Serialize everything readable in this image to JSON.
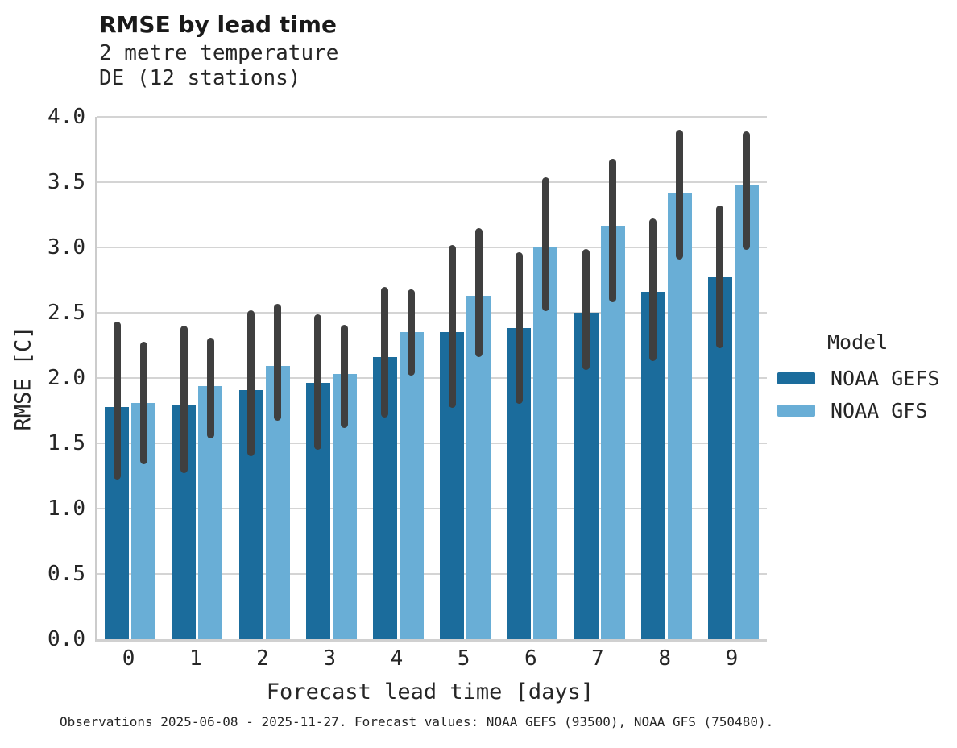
{
  "header": {
    "title": "RMSE by lead time",
    "subtitle_line1": "2 metre temperature",
    "subtitle_line2": "DE (12 stations)"
  },
  "chart_data": {
    "type": "bar",
    "title": "RMSE by lead time",
    "subtitle": [
      "2 metre temperature",
      "DE (12 stations)"
    ],
    "categories": [
      "0",
      "1",
      "2",
      "3",
      "4",
      "5",
      "6",
      "7",
      "8",
      "9"
    ],
    "xlabel": "Forecast lead time [days]",
    "ylabel": "RMSE [C]",
    "ylim": [
      0.0,
      4.0
    ],
    "ytick_step": 0.5,
    "yticks": [
      "0.0",
      "0.5",
      "1.0",
      "1.5",
      "2.0",
      "2.5",
      "3.0",
      "3.5",
      "4.0"
    ],
    "grid": "horizontal",
    "legend_title": "Model",
    "legend_position": "right",
    "error_bar_color": "#3f3f3f",
    "series": [
      {
        "name": "NOAA GEFS",
        "color": "#1b6c9c",
        "values": [
          1.78,
          1.79,
          1.91,
          1.96,
          2.16,
          2.35,
          2.38,
          2.5,
          2.66,
          2.77
        ],
        "error_low": [
          1.22,
          1.27,
          1.4,
          1.45,
          1.7,
          1.77,
          1.8,
          2.06,
          2.13,
          2.23
        ],
        "error_high": [
          2.43,
          2.4,
          2.52,
          2.49,
          2.7,
          3.02,
          2.96,
          2.99,
          3.22,
          3.32
        ]
      },
      {
        "name": "NOAA GFS",
        "color": "#69aed6",
        "values": [
          1.81,
          1.94,
          2.09,
          2.03,
          2.35,
          2.63,
          3.0,
          3.16,
          3.42,
          3.48
        ],
        "error_low": [
          1.34,
          1.54,
          1.67,
          1.62,
          2.02,
          2.16,
          2.51,
          2.58,
          2.91,
          2.98
        ],
        "error_high": [
          2.28,
          2.31,
          2.57,
          2.41,
          2.68,
          3.15,
          3.54,
          3.68,
          3.9,
          3.89
        ]
      }
    ]
  },
  "footer": {
    "text": "Observations 2025-06-08 - 2025-11-27. Forecast values: NOAA GEFS (93500), NOAA GFS (750480)."
  },
  "colors": {
    "gefs_bar": "#1b6c9c",
    "gfs_bar": "#69aed6",
    "error_bar": "#3f3f3f",
    "gridline": "#d4d4d4",
    "spine": "#cccccc",
    "text": "#262626",
    "title_text": "#1a1a1a"
  }
}
